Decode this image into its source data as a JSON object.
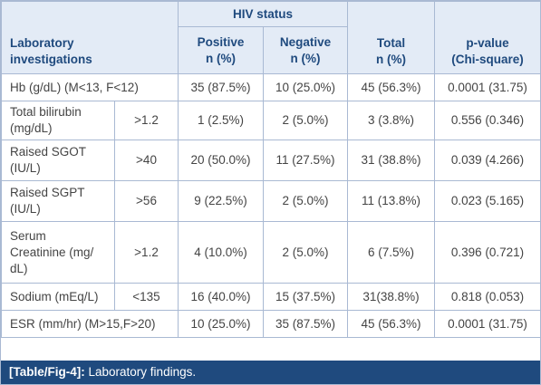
{
  "header": {
    "lab_label": "Laboratory\ninvestigations",
    "hiv_status": "HIV status",
    "positive": "Positive\nn (%)",
    "negative": "Negative\nn (%)",
    "total": "Total\nn (%)",
    "pvalue": "p-value\n(Chi-square)"
  },
  "rows": [
    {
      "lab": "Hb (g/dL) (M<13, F<12)",
      "cutoff": "",
      "positive": "35 (87.5%)",
      "negative": "10 (25.0%)",
      "total": "45 (56.3%)",
      "pvalue": "0.0001 (31.75)"
    },
    {
      "lab": "Total bilirubin\n(mg/dL)",
      "cutoff": ">1.2",
      "positive": "1 (2.5%)",
      "negative": "2 (5.0%)",
      "total": "3 (3.8%)",
      "pvalue": "0.556 (0.346)"
    },
    {
      "lab": "Raised SGOT\n(IU/L)",
      "cutoff": ">40",
      "positive": "20 (50.0%)",
      "negative": "11 (27.5%)",
      "total": "31 (38.8%)",
      "pvalue": "0.039 (4.266)"
    },
    {
      "lab": "Raised SGPT\n(IU/L)",
      "cutoff": ">56",
      "positive": "9 (22.5%)",
      "negative": "2 (5.0%)",
      "total": "11 (13.8%)",
      "pvalue": "0.023 (5.165)"
    },
    {
      "lab": "Serum\nCreatinine (mg/\ndL)",
      "cutoff": ">1.2",
      "positive": "4 (10.0%)",
      "negative": "2 (5.0%)",
      "total": "6 (7.5%)",
      "pvalue": "0.396 (0.721)"
    },
    {
      "lab": "Sodium (mEq/L)",
      "cutoff": "<135",
      "positive": "16 (40.0%)",
      "negative": "15 (37.5%)",
      "total": "31(38.8%)",
      "pvalue": "0.818 (0.053)"
    },
    {
      "lab": "ESR (mm/hr) (M>15,F>20)",
      "cutoff": "",
      "positive": "10 (25.0%)",
      "negative": "35 (87.5%)",
      "total": "45 (56.3%)",
      "pvalue": "0.0001 (31.75)"
    }
  ],
  "caption": {
    "label": "[Table/Fig-4]:",
    "text": "Laboratory findings."
  }
}
